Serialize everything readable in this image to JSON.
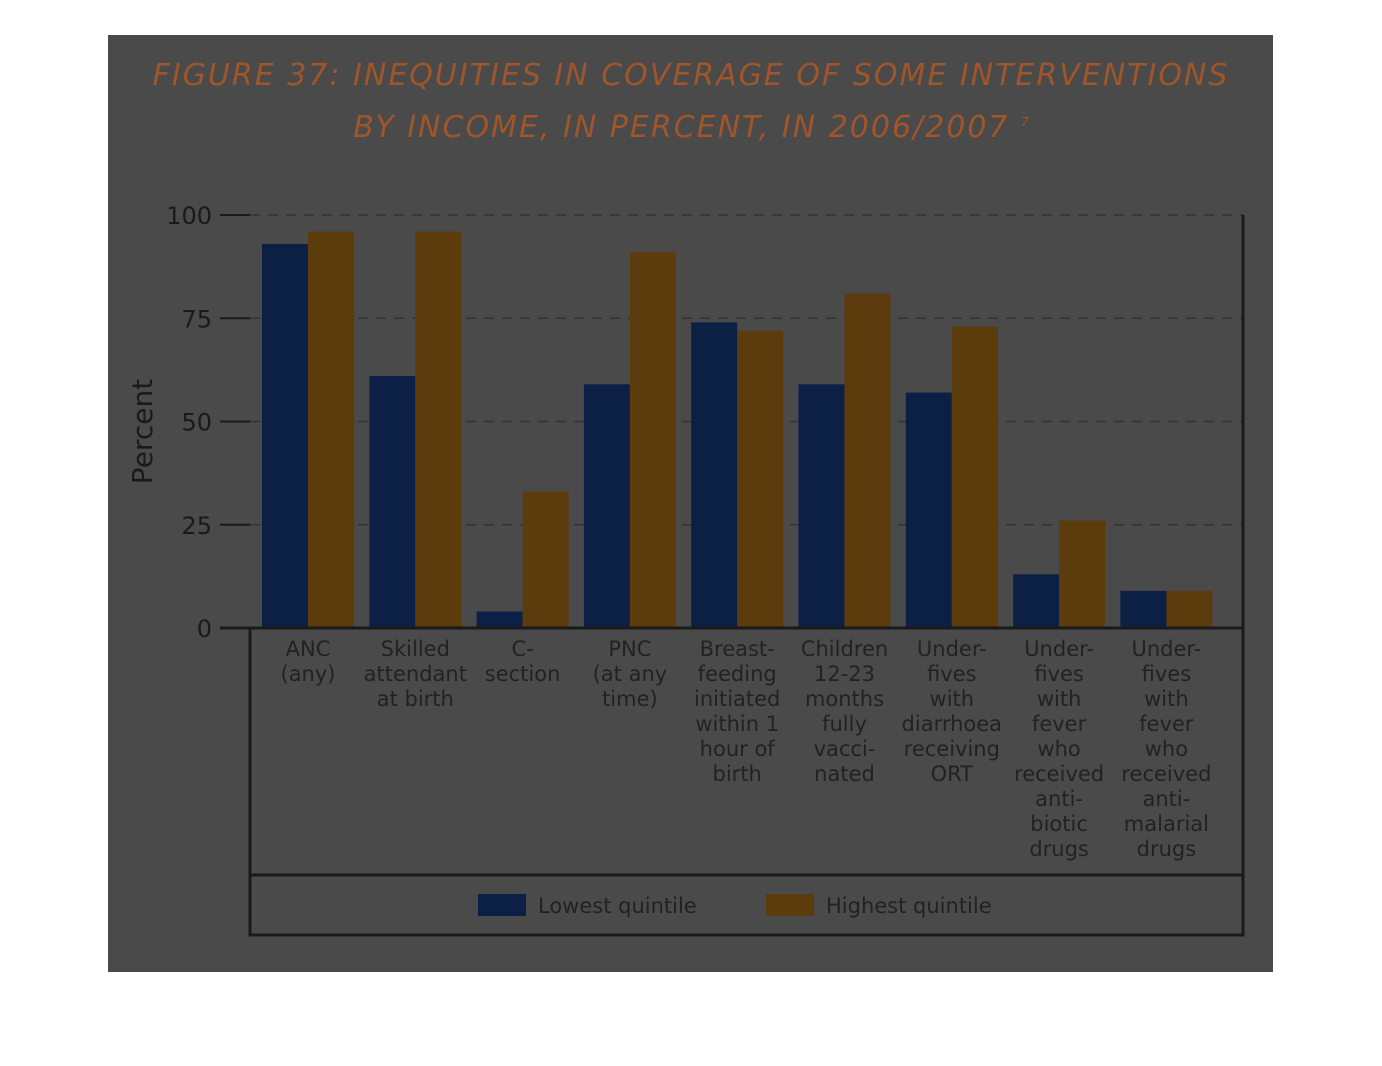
{
  "title": {
    "line1": "FIGURE 37: INEQUITIES IN COVERAGE OF SOME INTERVENTIONS",
    "line2": "BY INCOME, IN PERCENT, IN 2006/2007",
    "footnote": "7"
  },
  "chart_data": {
    "type": "bar",
    "title": "FIGURE 37: INEQUITIES IN COVERAGE OF SOME INTERVENTIONS BY INCOME, IN PERCENT, IN 2006/2007",
    "ylabel": "Percent",
    "xlabel": "",
    "ylim": [
      0,
      100
    ],
    "yticks": [
      0,
      25,
      50,
      75,
      100
    ],
    "grid": true,
    "legend_position": "bottom",
    "categories": [
      [
        "ANC",
        "(any)"
      ],
      [
        "Skilled",
        "attendant",
        "at birth"
      ],
      [
        "C-",
        "section"
      ],
      [
        "PNC",
        "(at any",
        "time)"
      ],
      [
        "Breast-",
        "feeding",
        "initiated",
        "within 1",
        "hour of",
        "birth"
      ],
      [
        "Children",
        "12-23",
        "months",
        "fully",
        "vacci-",
        "nated"
      ],
      [
        "Under-",
        "fives",
        "with",
        "diarrhoea",
        "receiving",
        "ORT"
      ],
      [
        "Under-",
        "fives",
        "with",
        "fever",
        "who",
        "received",
        "anti-",
        "biotic",
        "drugs"
      ],
      [
        "Under-",
        "fives",
        "with",
        "fever",
        "who",
        "received",
        "anti-",
        "malarial",
        "drugs"
      ]
    ],
    "series": [
      {
        "name": "Lowest quintile",
        "color": "#0c1f45",
        "values": [
          93,
          61,
          4,
          59,
          74,
          59,
          57,
          13,
          9
        ]
      },
      {
        "name": "Highest quintile",
        "color": "#5c3b0c",
        "values": [
          96,
          96,
          33,
          91,
          72,
          81,
          73,
          26,
          9
        ]
      }
    ]
  }
}
